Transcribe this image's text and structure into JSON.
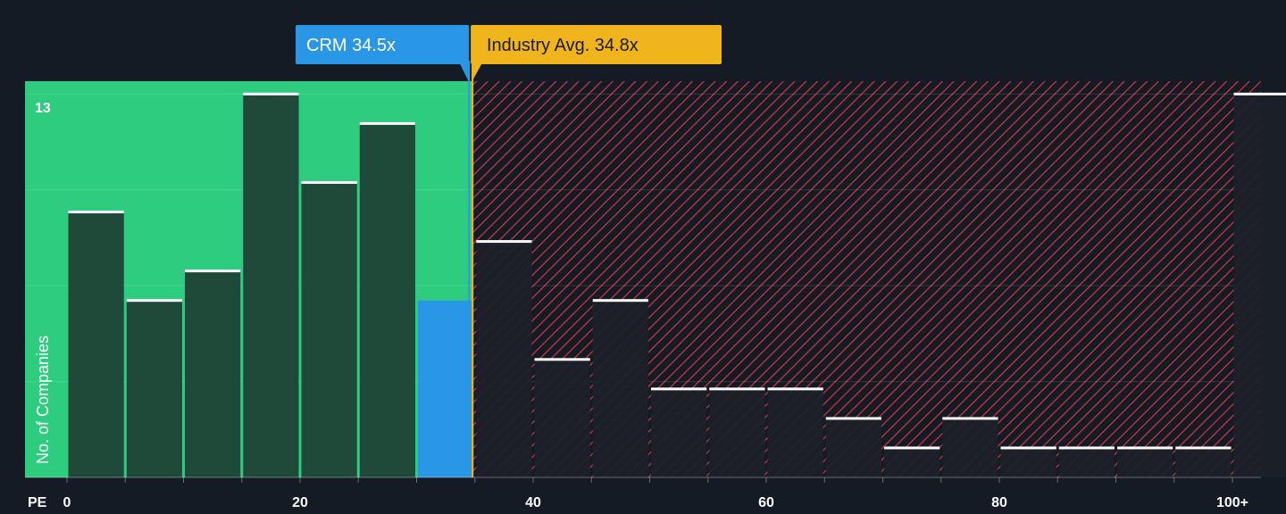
{
  "chart_data": {
    "type": "bar",
    "title": "",
    "xlabel": "PE",
    "ylabel": "No. of Companies",
    "xlim": [
      0,
      102.5
    ],
    "ylim": [
      0,
      13.5
    ],
    "y_max_label": "13",
    "x_ticks": [
      {
        "value": 0,
        "label": "0"
      },
      {
        "value": 20,
        "label": "20"
      },
      {
        "value": 40,
        "label": "40"
      },
      {
        "value": 60,
        "label": "60"
      },
      {
        "value": 80,
        "label": "80"
      },
      {
        "value": 100,
        "label": "100+"
      }
    ],
    "bin_width": 5,
    "bins": [
      {
        "start": 0,
        "count": 9
      },
      {
        "start": 5,
        "count": 6
      },
      {
        "start": 10,
        "count": 7
      },
      {
        "start": 15,
        "count": 13
      },
      {
        "start": 20,
        "count": 10
      },
      {
        "start": 25,
        "count": 12
      },
      {
        "start": 30,
        "count": 6
      },
      {
        "start": 35,
        "count": 8
      },
      {
        "start": 40,
        "count": 4
      },
      {
        "start": 45,
        "count": 6
      },
      {
        "start": 50,
        "count": 3
      },
      {
        "start": 55,
        "count": 3
      },
      {
        "start": 60,
        "count": 3
      },
      {
        "start": 65,
        "count": 2
      },
      {
        "start": 70,
        "count": 1
      },
      {
        "start": 75,
        "count": 2
      },
      {
        "start": 80,
        "count": 1
      },
      {
        "start": 85,
        "count": 1
      },
      {
        "start": 90,
        "count": 1
      },
      {
        "start": 95,
        "count": 1
      },
      {
        "start": 100,
        "count": 13
      }
    ],
    "company": {
      "name": "CRM",
      "value": 34.5,
      "label": "CRM 34.5x"
    },
    "industry_avg": {
      "value": 34.8,
      "label": "Industry Avg. 34.8x"
    },
    "colors": {
      "background": "#151b24",
      "undervalued_zone": "#2ecc7e",
      "undervalued_bar": "#1f4a3a",
      "company_bar": "#2a97e6",
      "overvalued_hatch": "#c4373f",
      "overvalued_bar": "#1c2028",
      "industry_line": "#f0b51c",
      "company_line": "#2a97e6",
      "bar_cap": "#ffffff",
      "axis_text": "#ffffff"
    }
  }
}
